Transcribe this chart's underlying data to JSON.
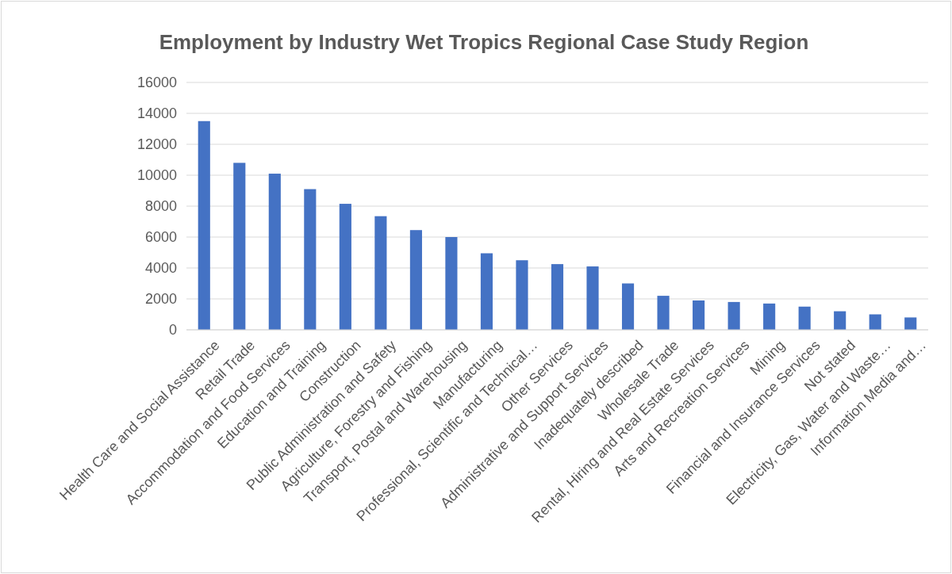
{
  "chart_data": {
    "type": "bar",
    "title": "Employment by Industry Wet Tropics Regional Case Study Region",
    "categories": [
      "Health Care and Social Assistance",
      "Retail Trade",
      "Accommodation and Food Services",
      "Education and Training",
      "Construction",
      "Public Administration and Safety",
      "Agriculture, Forestry and Fishing",
      "Transport, Postal and Warehousing",
      "Manufacturing",
      "Professional, Scientific and Technical…",
      "Other Services",
      "Administrative and Support Services",
      "Inadequately described",
      "Wholesale Trade",
      "Rental, Hiring and Real Estate Services",
      "Arts and Recreation Services",
      "Mining",
      "Financial and Insurance Services",
      "Not stated",
      "Electricity, Gas, Water and Waste…",
      "Information Media and…"
    ],
    "values": [
      13500,
      10800,
      10100,
      9100,
      8150,
      7350,
      6450,
      6000,
      4950,
      4500,
      4250,
      4100,
      3000,
      2200,
      1900,
      1800,
      1700,
      1500,
      1200,
      1000,
      800
    ],
    "color": "#4472c4",
    "ylim": [
      0,
      16000
    ],
    "yticks": [
      0,
      2000,
      4000,
      6000,
      8000,
      10000,
      12000,
      14000,
      16000
    ],
    "grid": "y"
  }
}
